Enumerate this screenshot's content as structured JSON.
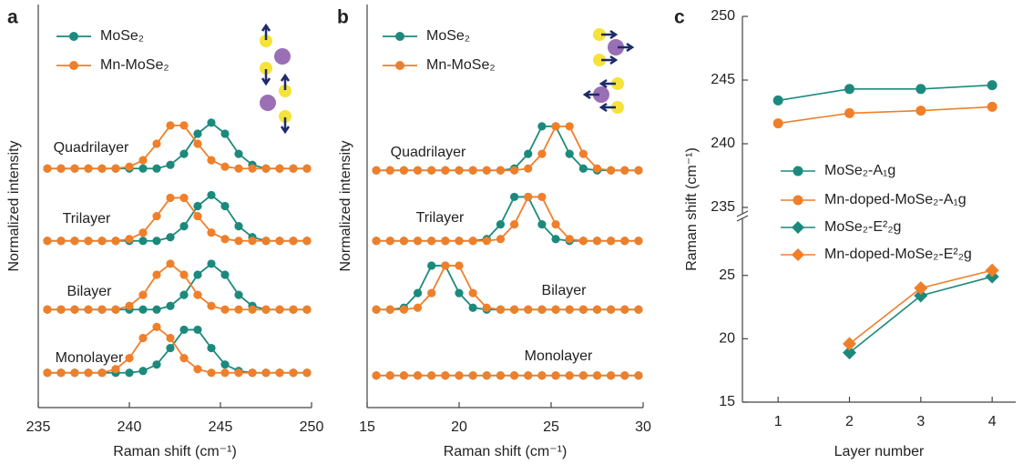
{
  "chart_data": [
    {
      "type": "offset-spectra",
      "panel_label": "a",
      "xlabel": "Raman shift (cm⁻¹)",
      "ylabel": "Normalized intensity",
      "x": [
        235.5,
        236.25,
        237,
        237.75,
        238.5,
        239.25,
        240,
        240.75,
        241.5,
        242.25,
        243,
        243.75,
        244.5,
        245.25,
        246,
        246.75,
        247.5,
        248.25,
        249,
        249.75
      ],
      "xlim": [
        235,
        250
      ],
      "xticks": [
        235,
        240,
        245,
        250
      ],
      "ylim": [
        0,
        4.4
      ],
      "annotations": [
        "Quadrilayer",
        "Trilayer",
        "Bilayer",
        "Monolayer"
      ],
      "series": [
        {
          "name": "MoSe₂",
          "color": "#1b8a7c",
          "values": [
            [
              2.61,
              2.61,
              2.61,
              2.61,
              2.61,
              2.61,
              2.61,
              2.61,
              2.61,
              2.65,
              2.77,
              2.99,
              3.11,
              2.99,
              2.77,
              2.65,
              2.61,
              2.61,
              2.61,
              2.61
            ],
            [
              1.82,
              1.82,
              1.82,
              1.82,
              1.82,
              1.82,
              1.82,
              1.82,
              1.82,
              1.86,
              1.98,
              2.2,
              2.32,
              2.2,
              1.98,
              1.86,
              1.82,
              1.82,
              1.82,
              1.82
            ],
            [
              1.07,
              1.07,
              1.07,
              1.07,
              1.07,
              1.07,
              1.07,
              1.07,
              1.07,
              1.11,
              1.23,
              1.45,
              1.57,
              1.45,
              1.23,
              1.11,
              1.07,
              1.07,
              1.07,
              1.07
            ],
            [
              0.38,
              0.38,
              0.38,
              0.38,
              0.38,
              0.38,
              0.38,
              0.4,
              0.47,
              0.65,
              0.85,
              0.85,
              0.65,
              0.47,
              0.4,
              0.38,
              0.38,
              0.38,
              0.38,
              0.38
            ]
          ]
        },
        {
          "name": "Mn-MoSe₂",
          "color": "#f07f2a",
          "values": [
            [
              2.61,
              2.61,
              2.61,
              2.61,
              2.61,
              2.61,
              2.63,
              2.7,
              2.88,
              3.08,
              3.08,
              2.88,
              2.7,
              2.63,
              2.61,
              2.61,
              2.61,
              2.61,
              2.61,
              2.61
            ],
            [
              1.82,
              1.82,
              1.82,
              1.82,
              1.82,
              1.82,
              1.84,
              1.91,
              2.09,
              2.29,
              2.29,
              2.09,
              1.91,
              1.84,
              1.82,
              1.82,
              1.82,
              1.82,
              1.82,
              1.82
            ],
            [
              1.07,
              1.07,
              1.07,
              1.07,
              1.07,
              1.07,
              1.11,
              1.23,
              1.45,
              1.57,
              1.45,
              1.23,
              1.11,
              1.07,
              1.07,
              1.07,
              1.07,
              1.07,
              1.07,
              1.07
            ],
            [
              0.38,
              0.38,
              0.38,
              0.38,
              0.38,
              0.42,
              0.54,
              0.76,
              0.88,
              0.76,
              0.54,
              0.42,
              0.38,
              0.38,
              0.38,
              0.38,
              0.38,
              0.38,
              0.38,
              0.38
            ]
          ]
        }
      ]
    },
    {
      "type": "offset-spectra",
      "panel_label": "b",
      "xlabel": "Raman shift (cm⁻¹)",
      "ylabel": "Normalized intensity",
      "x": [
        15.5,
        16.25,
        17,
        17.75,
        18.5,
        19.25,
        20,
        20.75,
        21.5,
        22.25,
        23,
        23.75,
        24.5,
        25.25,
        26,
        26.75,
        27.5,
        28.25,
        29,
        29.75
      ],
      "xlim": [
        15,
        30
      ],
      "xticks": [
        15,
        20,
        25,
        30
      ],
      "ylim": [
        0,
        4.4
      ],
      "annotations": [
        "Quadrilayer",
        "Trilayer",
        "Bilayer",
        "Monolayer"
      ],
      "series": [
        {
          "name": "MoSe₂",
          "color": "#1b8a7c",
          "values": [
            [
              2.59,
              2.59,
              2.59,
              2.59,
              2.59,
              2.59,
              2.59,
              2.59,
              2.59,
              2.59,
              2.61,
              2.77,
              3.07,
              3.07,
              2.77,
              2.61,
              2.59,
              2.59,
              2.59,
              2.59
            ],
            [
              1.82,
              1.82,
              1.82,
              1.82,
              1.82,
              1.82,
              1.82,
              1.82,
              1.84,
              2.0,
              2.3,
              2.3,
              2.0,
              1.84,
              1.82,
              1.82,
              1.82,
              1.82,
              1.82,
              1.82
            ],
            [
              1.07,
              1.07,
              1.09,
              1.25,
              1.55,
              1.55,
              1.25,
              1.09,
              1.07,
              1.07,
              1.07,
              1.07,
              1.07,
              1.07,
              1.07,
              1.07,
              1.07,
              1.07,
              1.07,
              1.07
            ],
            [
              0.35,
              0.35,
              0.35,
              0.35,
              0.35,
              0.35,
              0.35,
              0.35,
              0.35,
              0.35,
              0.35,
              0.35,
              0.35,
              0.35,
              0.35,
              0.35,
              0.35,
              0.35,
              0.35,
              0.35
            ]
          ]
        },
        {
          "name": "Mn-MoSe₂",
          "color": "#f07f2a",
          "values": [
            [
              2.59,
              2.59,
              2.59,
              2.59,
              2.59,
              2.59,
              2.59,
              2.59,
              2.59,
              2.59,
              2.59,
              2.61,
              2.77,
              3.07,
              3.07,
              2.77,
              2.61,
              2.59,
              2.59,
              2.59
            ],
            [
              1.82,
              1.82,
              1.82,
              1.82,
              1.82,
              1.82,
              1.82,
              1.82,
              1.82,
              1.84,
              2.0,
              2.3,
              2.3,
              2.0,
              1.84,
              1.82,
              1.82,
              1.82,
              1.82,
              1.82
            ],
            [
              1.07,
              1.07,
              1.07,
              1.09,
              1.25,
              1.55,
              1.55,
              1.25,
              1.09,
              1.07,
              1.07,
              1.07,
              1.07,
              1.07,
              1.07,
              1.07,
              1.07,
              1.07,
              1.07,
              1.07
            ],
            [
              0.35,
              0.35,
              0.35,
              0.35,
              0.35,
              0.35,
              0.35,
              0.35,
              0.35,
              0.35,
              0.35,
              0.35,
              0.35,
              0.35,
              0.35,
              0.35,
              0.35,
              0.35,
              0.35,
              0.35
            ]
          ]
        }
      ]
    },
    {
      "type": "broken-axis-line",
      "panel_label": "c",
      "xlabel": "Layer number",
      "ylabel": "Raman shift (cm⁻¹)",
      "x": [
        1,
        2,
        3,
        4
      ],
      "xlim": [
        0.5,
        4.33
      ],
      "xticks": [
        1,
        2,
        3,
        4
      ],
      "ylim": [
        15,
        29.5
      ],
      "yticks": [
        15,
        20,
        25
      ],
      "y2lim": [
        234.5,
        250
      ],
      "y2ticks": [
        235,
        240,
        245,
        250
      ],
      "legend": "center",
      "series": [
        {
          "name": "MoSe₂-A₁g",
          "color": "#1b8a7c",
          "marker": "circle",
          "axis": "y2",
          "values": [
            243.4,
            244.3,
            244.3,
            244.6
          ]
        },
        {
          "name": "Mn-doped-MoSe₂-A₁g",
          "color": "#f07f2a",
          "marker": "circle",
          "axis": "y2",
          "values": [
            241.6,
            242.4,
            242.6,
            242.9
          ]
        },
        {
          "name": "MoSe₂-E²₂g",
          "color": "#1b8a7c",
          "marker": "diamond",
          "values": [
            null,
            18.9,
            23.4,
            24.9
          ]
        },
        {
          "name": "Mn-doped-MoSe₂-E²₂g",
          "color": "#f07f2a",
          "marker": "diamond",
          "values": [
            null,
            19.6,
            24.0,
            25.4
          ]
        }
      ]
    }
  ]
}
